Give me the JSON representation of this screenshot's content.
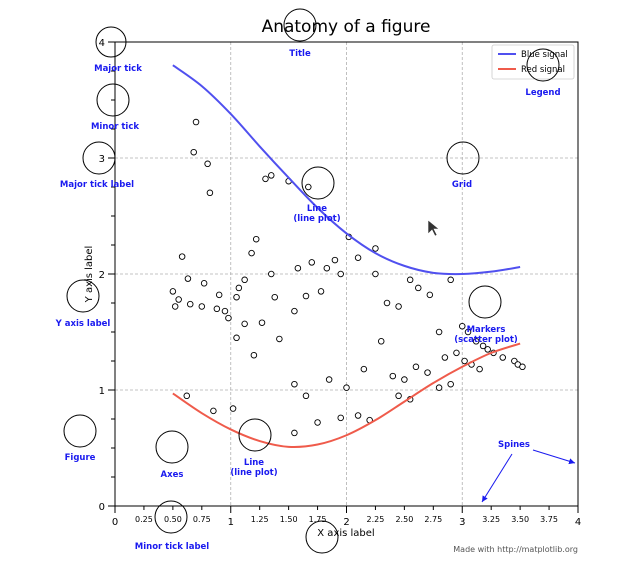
{
  "chart_data": {
    "type": "line",
    "title": "Anatomy of a figure",
    "xlabel": "X axis label",
    "ylabel": "Y axis label",
    "xlim": [
      0,
      4
    ],
    "ylim": [
      0,
      4
    ],
    "grid": true,
    "legend_position": "top-right",
    "major_x_ticks": [
      "0",
      "1",
      "2",
      "3",
      "4"
    ],
    "minor_x_ticks": [
      "0.25",
      "0.50",
      "0.75",
      "1.25",
      "1.50",
      "1.75",
      "2.25",
      "2.50",
      "2.75",
      "3.25",
      "3.50",
      "3.75"
    ],
    "y_ticks": [
      "0",
      "1",
      "2",
      "3",
      "4"
    ],
    "series": [
      {
        "name": "Blue signal",
        "color": "#5050ef",
        "x": [
          0.5,
          0.75,
          1.0,
          1.25,
          1.5,
          1.75,
          2.0,
          2.25,
          2.5,
          2.75,
          3.0,
          3.25,
          3.5
        ],
        "y": [
          3.8,
          3.62,
          3.38,
          3.1,
          2.83,
          2.57,
          2.35,
          2.18,
          2.07,
          2.01,
          2.0,
          2.02,
          2.06
        ]
      },
      {
        "name": "Red signal",
        "color": "#ef5b4b",
        "x": [
          0.5,
          0.75,
          1.0,
          1.25,
          1.5,
          1.75,
          2.0,
          2.25,
          2.5,
          2.75,
          3.0,
          3.25,
          3.5
        ],
        "y": [
          0.97,
          0.8,
          0.66,
          0.56,
          0.51,
          0.53,
          0.61,
          0.74,
          0.9,
          1.06,
          1.2,
          1.32,
          1.4
        ]
      }
    ],
    "scatter": {
      "x": [
        0.7,
        0.68,
        0.8,
        0.82,
        1.3,
        1.35,
        1.5,
        1.67,
        0.58,
        0.63,
        0.77,
        0.9,
        1.05,
        0.98,
        1.12,
        1.27,
        1.42,
        1.55,
        1.38,
        1.65,
        1.78,
        1.9,
        2.02,
        2.25,
        0.5,
        0.55,
        0.52,
        0.65,
        0.75,
        0.88,
        0.95,
        1.07,
        1.12,
        1.18,
        1.22,
        1.35,
        1.58,
        1.7,
        1.83,
        1.95,
        2.1,
        2.25,
        2.35,
        2.45,
        2.55,
        2.62,
        2.72,
        2.8,
        2.9,
        3.0,
        3.05,
        3.12,
        3.18,
        3.22,
        3.27,
        3.35,
        3.45,
        3.48,
        3.52,
        1.05,
        1.2,
        1.55,
        1.65,
        1.85,
        2.0,
        2.15,
        2.3,
        2.4,
        2.5,
        2.6,
        2.7,
        2.85,
        2.95,
        3.02,
        3.08,
        3.15,
        0.62,
        0.85,
        1.02,
        1.55,
        1.75,
        1.95,
        2.1,
        2.2,
        2.45,
        2.55,
        2.8,
        2.9
      ],
      "y": [
        3.31,
        3.05,
        2.95,
        2.7,
        2.82,
        2.85,
        2.8,
        2.75,
        2.15,
        1.96,
        1.92,
        1.82,
        1.8,
        1.62,
        1.57,
        1.58,
        1.44,
        1.68,
        1.8,
        1.81,
        1.85,
        2.12,
        2.32,
        2.22,
        1.85,
        1.78,
        1.72,
        1.74,
        1.72,
        1.7,
        1.68,
        1.88,
        1.95,
        2.18,
        2.3,
        2.0,
        2.05,
        2.1,
        2.05,
        2.0,
        2.14,
        2.0,
        1.75,
        1.72,
        1.95,
        1.88,
        1.82,
        1.5,
        1.95,
        1.55,
        1.5,
        1.42,
        1.38,
        1.35,
        1.32,
        1.28,
        1.25,
        1.22,
        1.2,
        1.45,
        1.3,
        1.05,
        0.95,
        1.09,
        1.02,
        1.18,
        1.42,
        1.12,
        1.09,
        1.2,
        1.15,
        1.28,
        1.32,
        1.25,
        1.22,
        1.18,
        0.95,
        0.82,
        0.84,
        0.63,
        0.72,
        0.76,
        0.78,
        0.74,
        0.95,
        0.92,
        1.02,
        1.05
      ]
    },
    "annotations": [
      "Major tick",
      "Minor tick",
      "Major tick label",
      "Y axis label",
      "Figure",
      "Axes",
      "Line\n(line plot)",
      "Line\n(line plot)",
      "Title",
      "Legend",
      "Grid",
      "Markers\n(scatter plot)",
      "Spines",
      "Minor tick label",
      "X axis label"
    ],
    "footer": "Made with http://matplotlib.org"
  }
}
